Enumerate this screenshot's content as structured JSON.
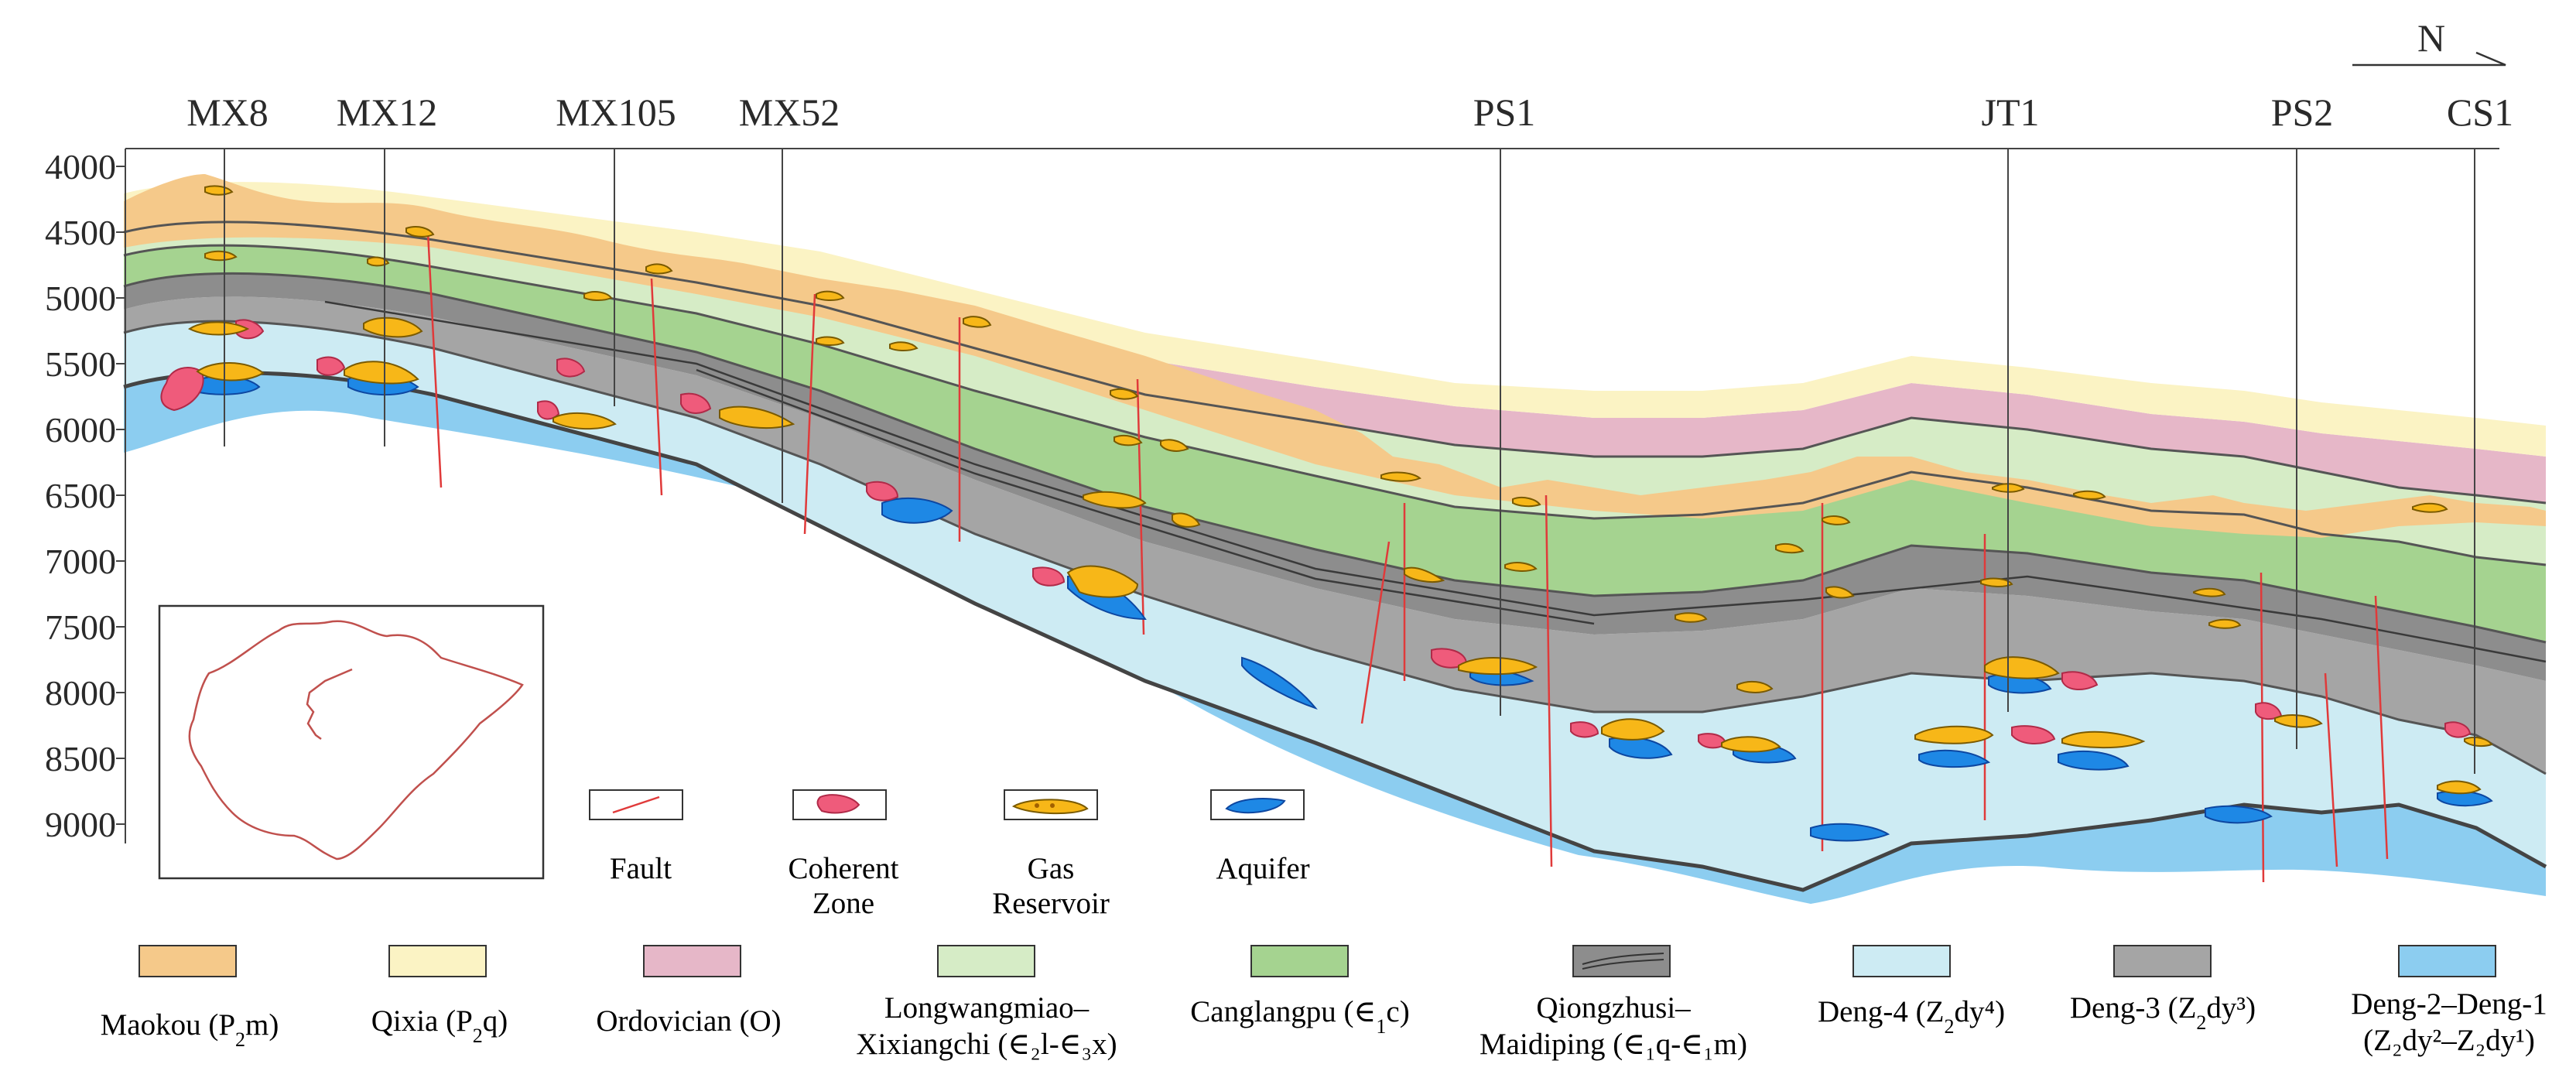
{
  "north": {
    "label": "N"
  },
  "wells": [
    {
      "name": "MX8"
    },
    {
      "name": "MX12"
    },
    {
      "name": "MX105"
    },
    {
      "name": "MX52"
    },
    {
      "name": "PS1"
    },
    {
      "name": "JT1"
    },
    {
      "name": "PS2"
    },
    {
      "name": "CS1"
    }
  ],
  "depth_ticks": [
    "4000",
    "4500",
    "5000",
    "5500",
    "6000",
    "6500",
    "7000",
    "7500",
    "8000",
    "8500",
    "9000"
  ],
  "symbol_legend": [
    {
      "key": "fault",
      "lines": [
        "Fault"
      ]
    },
    {
      "key": "coherent",
      "lines": [
        "Coherent",
        "Zone"
      ]
    },
    {
      "key": "gas",
      "lines": [
        "Gas",
        "Reservoir"
      ]
    },
    {
      "key": "aquifer",
      "lines": [
        "Aquifer"
      ]
    }
  ],
  "strata_legend": [
    {
      "key": "maokou",
      "name": "Maokou (",
      "sym": "P",
      "sub": "2",
      "post": "m)",
      "line2": "",
      "color": "#f5c98a"
    },
    {
      "key": "qixia",
      "name": "Qixia (",
      "sym": "P",
      "sub": "2",
      "post": "q)",
      "line2": "",
      "color": "#fbf3c4"
    },
    {
      "key": "ordovician",
      "name": "Ordovician (O)",
      "line2": "",
      "color": "#e6b7c8"
    },
    {
      "key": "longwangmiao",
      "name": "Longwangmiao–",
      "line2": "Xixiangchi (∈₂l-∈₃x)",
      "color": "#d6ecc6"
    },
    {
      "key": "canglangpu",
      "name": "Canglangpu (",
      "sym": "∈",
      "sub": "1",
      "post": "c)",
      "line2": "",
      "color": "#a5d390"
    },
    {
      "key": "qiongzhusi",
      "name": "Qiongzhusi–",
      "line2": "Maidiping (∈₁q-∈₁m)",
      "color": "#8d8d8d"
    },
    {
      "key": "deng4",
      "name": "Deng-4 (",
      "sym": "Z",
      "sub": "2",
      "post": "dy⁴)",
      "line2": "",
      "color": "#cdebf3"
    },
    {
      "key": "deng3",
      "name": "Deng-3 (",
      "sym": "Z",
      "sub": "2",
      "post": "dy³)",
      "line2": "",
      "color": "#a5a5a5"
    },
    {
      "key": "deng21",
      "name": "Deng-2–Deng-1",
      "line2": "(Z₂dy²–Z₂dy¹)",
      "color": "#8ccdf0"
    }
  ]
}
